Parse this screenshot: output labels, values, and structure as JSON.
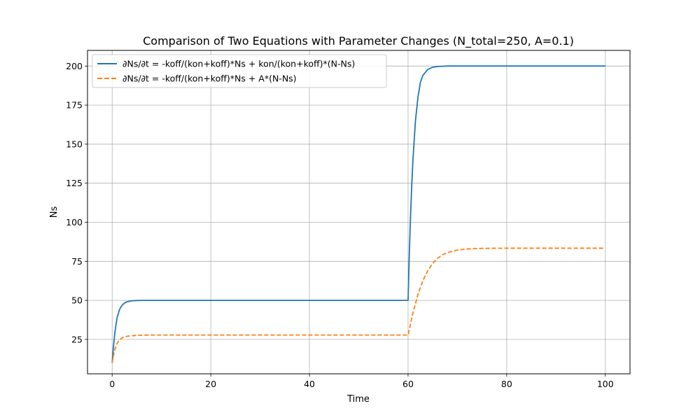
{
  "chart_data": {
    "type": "line",
    "title": "Comparison of Two Equations with Parameter Changes (N_total=250, A=0.1)",
    "xlabel": "Time",
    "ylabel": "Ns",
    "xlim": [
      -5,
      105
    ],
    "ylim": [
      3,
      210
    ],
    "xticks": [
      0,
      20,
      40,
      60,
      80,
      100
    ],
    "yticks": [
      25,
      50,
      75,
      100,
      125,
      150,
      175,
      200
    ],
    "xtick_labels": [
      "0",
      "20",
      "40",
      "60",
      "80",
      "100"
    ],
    "ytick_labels": [
      "25",
      "50",
      "75",
      "100",
      "125",
      "150",
      "175",
      "200"
    ],
    "grid": true,
    "legend_position": "upper-left",
    "series": [
      {
        "name": "∂Ns/∂t = -koff/(kon+koff)*Ns + kon/(kon+koff)*(N-Ns)",
        "color": "#1f77b4",
        "dash": "solid",
        "x": [
          0,
          0.25,
          0.5,
          0.75,
          1,
          1.5,
          2,
          2.5,
          3,
          4,
          5,
          6,
          8,
          10,
          20,
          30,
          40,
          50,
          59.9,
          60,
          60.25,
          60.5,
          60.75,
          61,
          61.5,
          62,
          62.5,
          63,
          64,
          65,
          66,
          68,
          70,
          80,
          90,
          100
        ],
        "y": [
          10,
          19.8,
          27.8,
          34.0,
          38.8,
          44.2,
          46.9,
          48.3,
          49.1,
          49.7,
          49.9,
          50.0,
          50.0,
          50.0,
          50.0,
          50.0,
          50.0,
          50.0,
          50.0,
          50.0,
          79.5,
          104.0,
          124.0,
          140.5,
          165.0,
          180.0,
          189.5,
          194.0,
          197.8,
          199.2,
          199.7,
          200.0,
          200.0,
          200.0,
          200.0,
          200.0
        ]
      },
      {
        "name": "∂Ns/∂t = -koff/(kon+koff)*Ns + A*(N-Ns)",
        "color": "#ff7f0e",
        "dash": "dashed",
        "x": [
          0,
          0.25,
          0.5,
          1,
          1.5,
          2,
          3,
          4,
          5,
          6,
          8,
          10,
          20,
          30,
          40,
          50,
          59.9,
          60,
          61,
          62,
          63,
          64,
          65,
          66,
          67,
          68,
          70,
          72,
          75,
          80,
          90,
          100
        ],
        "y": [
          10,
          14.5,
          18.1,
          22.5,
          24.8,
          26.0,
          27.0,
          27.4,
          27.6,
          27.7,
          27.8,
          27.8,
          27.8,
          27.8,
          27.8,
          27.8,
          27.8,
          27.8,
          42.1,
          53.8,
          62.6,
          69.0,
          73.7,
          77.0,
          79.2,
          80.6,
          82.2,
          82.9,
          83.3,
          83.4,
          83.4,
          83.4
        ]
      }
    ]
  }
}
